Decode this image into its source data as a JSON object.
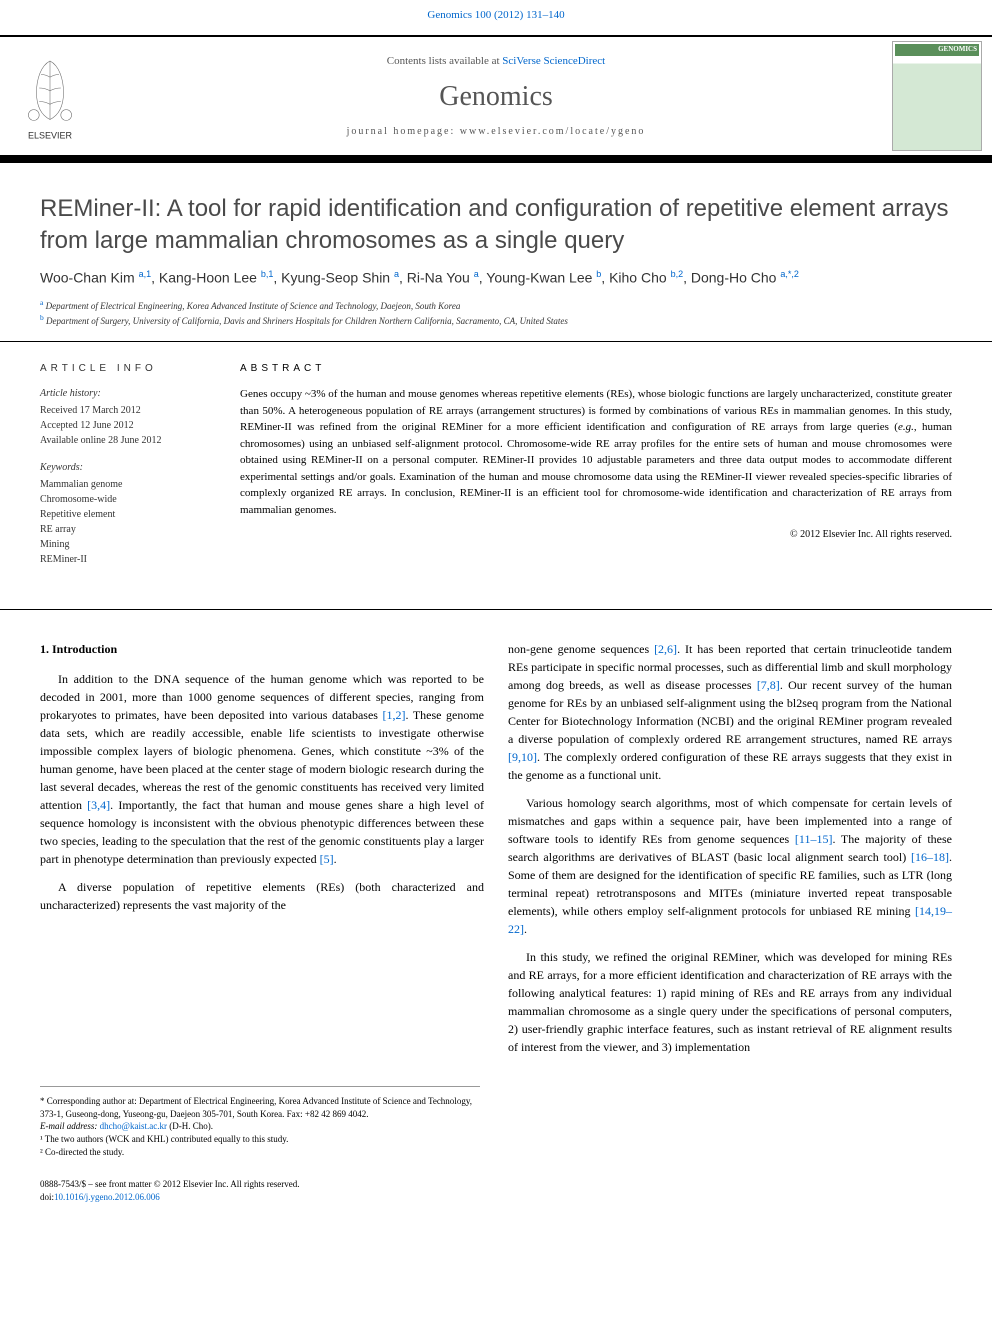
{
  "top_citation": "Genomics 100 (2012) 131–140",
  "header": {
    "contents_text": "Contents lists available at ",
    "contents_link": "SciVerse ScienceDirect",
    "journal": "Genomics",
    "homepage_label": "journal homepage: ",
    "homepage_url": "www.elsevier.com/locate/ygeno",
    "cover_label": "GENOMICS",
    "publisher": "ELSEVIER"
  },
  "title": "REMiner-II: A tool for rapid identification and configuration of repetitive element arrays from large mammalian chromosomes as a single query",
  "authors_html": "Woo-Chan Kim <sup>a,1</sup>, Kang-Hoon Lee <sup>b,1</sup>, Kyung-Seop Shin <sup>a</sup>, Ri-Na You <sup>a</sup>, Young-Kwan Lee <sup>b</sup>, Kiho Cho <sup>b,2</sup>, Dong-Ho Cho <sup>a,*,2</sup>",
  "affiliations": [
    {
      "sup": "a",
      "text": "Department of Electrical Engineering, Korea Advanced Institute of Science and Technology, Daejeon, South Korea"
    },
    {
      "sup": "b",
      "text": "Department of Surgery, University of California, Davis and Shriners Hospitals for Children Northern California, Sacramento, CA, United States"
    }
  ],
  "info": {
    "heading": "ARTICLE INFO",
    "history_label": "Article history:",
    "received": "Received 17 March 2012",
    "accepted": "Accepted 12 June 2012",
    "online": "Available online 28 June 2012",
    "keywords_label": "Keywords:",
    "keywords": [
      "Mammalian genome",
      "Chromosome-wide",
      "Repetitive element",
      "RE array",
      "Mining",
      "REMiner-II"
    ]
  },
  "abstract": {
    "heading": "ABSTRACT",
    "body": "Genes occupy ~3% of the human and mouse genomes whereas repetitive elements (REs), whose biologic functions are largely uncharacterized, constitute greater than 50%. A heterogeneous population of RE arrays (arrangement structures) is formed by combinations of various REs in mammalian genomes. In this study, REMiner-II was refined from the original REMiner for a more efficient identification and configuration of RE arrays from large queries (e.g., human chromosomes) using an unbiased self-alignment protocol. Chromosome-wide RE array profiles for the entire sets of human and mouse chromosomes were obtained using REMiner-II on a personal computer. REMiner-II provides 10 adjustable parameters and three data output modes to accommodate different experimental settings and/or goals. Examination of the human and mouse chromosome data using the REMiner-II viewer revealed species-specific libraries of complexly organized RE arrays. In conclusion, REMiner-II is an efficient tool for chromosome-wide identification and characterization of RE arrays from mammalian genomes.",
    "copyright": "© 2012 Elsevier Inc. All rights reserved."
  },
  "intro": {
    "heading": "1. Introduction",
    "p1a": "In addition to the DNA sequence of the human genome which was reported to be decoded in 2001, more than 1000 genome sequences of different species, ranging from prokaryotes to primates, have been deposited into various databases ",
    "r1": "[1,2]",
    "p1b": ". These genome data sets, which are readily accessible, enable life scientists to investigate otherwise impossible complex layers of biologic phenomena. Genes, which constitute ~3% of the human genome, have been placed at the center stage of modern biologic research during the last several decades, whereas the rest of the genomic constituents has received very limited attention ",
    "r2": "[3,4]",
    "p1c": ". Importantly, the fact that human and mouse genes share a high level of sequence homology is inconsistent with the obvious phenotypic differences between these two species, leading to the speculation that the rest of the genomic constituents play a larger part in phenotype determination than previously expected ",
    "r3": "[5]",
    "p1d": ".",
    "p2a": "A diverse population of repetitive elements (REs) (both characterized and uncharacterized) represents the vast majority of the ",
    "col2_p1a": "non-gene genome sequences ",
    "r4": "[2,6]",
    "col2_p1b": ". It has been reported that certain trinucleotide tandem REs participate in specific normal processes, such as differential limb and skull morphology among dog breeds, as well as disease processes ",
    "r5": "[7,8]",
    "col2_p1c": ". Our recent survey of the human genome for REs by an unbiased self-alignment using the bl2seq program from the National Center for Biotechnology Information (NCBI) and the original REMiner program revealed a diverse population of complexly ordered RE arrangement structures, named RE arrays ",
    "r6": "[9,10]",
    "col2_p1d": ". The complexly ordered configuration of these RE arrays suggests that they exist in the genome as a functional unit.",
    "col2_p2a": "Various homology search algorithms, most of which compensate for certain levels of mismatches and gaps within a sequence pair, have been implemented into a range of software tools to identify REs from genome sequences ",
    "r7": "[11–15]",
    "col2_p2b": ". The majority of these search algorithms are derivatives of BLAST (basic local alignment search tool) ",
    "r8": "[16–18]",
    "col2_p2c": ". Some of them are designed for the identification of specific RE families, such as LTR (long terminal repeat) retrotransposons and MITEs (miniature inverted repeat transposable elements), while others employ self-alignment protocols for unbiased RE mining ",
    "r9": "[14,19–22]",
    "col2_p2d": ".",
    "col2_p3": "In this study, we refined the original REMiner, which was developed for mining REs and RE arrays, for a more efficient identification and characterization of RE arrays with the following analytical features: 1) rapid mining of REs and RE arrays from any individual mammalian chromosome as a single query under the specifications of personal computers, 2) user-friendly graphic interface features, such as instant retrieval of RE alignment results of interest from the viewer, and 3) implementation"
  },
  "footnotes": {
    "corr": "* Corresponding author at: Department of Electrical Engineering, Korea Advanced Institute of Science and Technology, 373-1, Guseong-dong, Yuseong-gu, Daejeon 305-701, South Korea. Fax: +82 42 869 4042.",
    "email_label": "E-mail address: ",
    "email": "dhcho@kaist.ac.kr",
    "email_name": " (D-H. Cho).",
    "f1": "¹ The two authors (WCK and KHL) contributed equally to this study.",
    "f2": "² Co-directed the study."
  },
  "bottom": {
    "line1": "0888-7543/$ – see front matter © 2012 Elsevier Inc. All rights reserved.",
    "doi_label": "doi:",
    "doi": "10.1016/j.ygeno.2012.06.006"
  },
  "colors": {
    "link": "#0066cc",
    "text": "#000000",
    "muted": "#555555"
  }
}
